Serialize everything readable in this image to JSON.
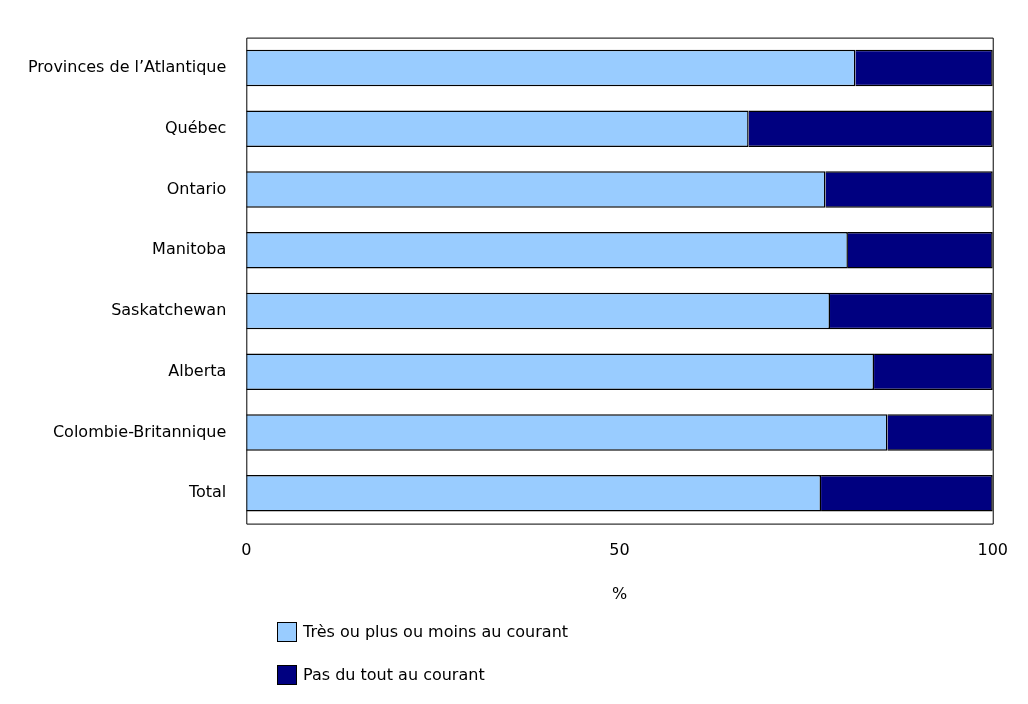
{
  "chart_data": {
    "type": "bar",
    "orientation": "horizontal",
    "stacked": true,
    "categories": [
      "Provinces de l’Atlantique",
      "Québec",
      "Ontario",
      "Manitoba",
      "Saskatchewan",
      "Alberta",
      "Colombie-Britannique",
      "Total"
    ],
    "series": [
      {
        "name": "Très ou plus ou moins au courant",
        "color": "#99ccff",
        "values": [
          81.6,
          67.3,
          77.6,
          80.6,
          78.2,
          84.1,
          85.9,
          77.0
        ]
      },
      {
        "name": "Pas du tout au courant",
        "color": "#000080",
        "values": [
          18.4,
          32.7,
          22.4,
          19.4,
          21.8,
          15.9,
          14.1,
          23.0
        ]
      }
    ],
    "xlabel": "%",
    "xlim": [
      0,
      100
    ],
    "xticks": [
      0,
      50,
      100
    ],
    "grid": false,
    "legend": "bottom"
  }
}
